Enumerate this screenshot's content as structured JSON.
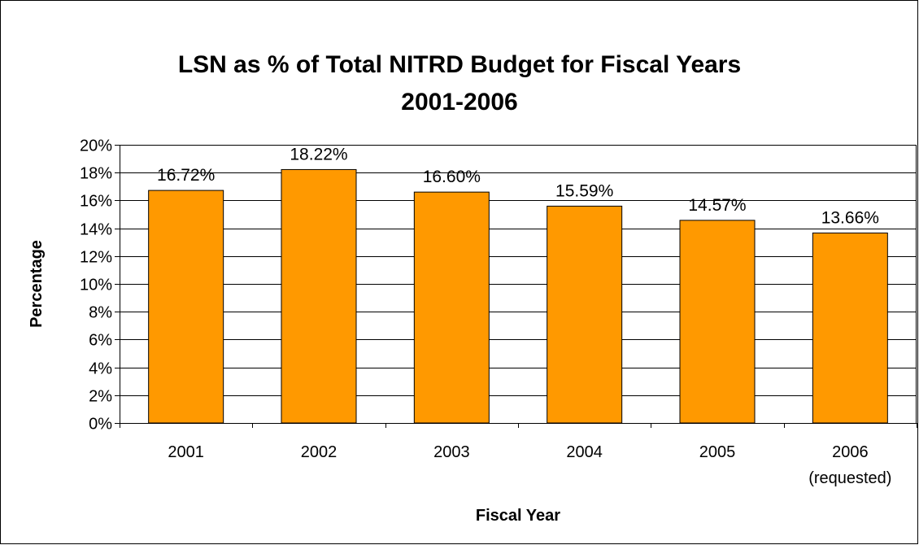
{
  "chart_data": {
    "type": "bar",
    "title": "LSN as % of Total NITRD Budget for Fiscal Years",
    "subtitle": "2001-2006",
    "xlabel": "Fiscal Year",
    "ylabel": "Percentage",
    "categories": [
      "2001",
      "2002",
      "2003",
      "2004",
      "2005",
      "2006"
    ],
    "category_sublabels": [
      "",
      "",
      "",
      "",
      "",
      "(requested)"
    ],
    "values": [
      16.72,
      18.22,
      16.6,
      15.59,
      14.57,
      13.66
    ],
    "data_labels": [
      "16.72%",
      "18.22%",
      "16.60%",
      "15.59%",
      "14.57%",
      "13.66%"
    ],
    "y_ticks": [
      "0%",
      "2%",
      "4%",
      "6%",
      "8%",
      "10%",
      "12%",
      "14%",
      "16%",
      "18%",
      "20%"
    ],
    "ylim": [
      0,
      20
    ],
    "grid": true,
    "legend": "none",
    "colors": {
      "bar": "#FF9900",
      "bar_border": "#000000",
      "grid": "#000000",
      "background": "#ffffff"
    }
  }
}
